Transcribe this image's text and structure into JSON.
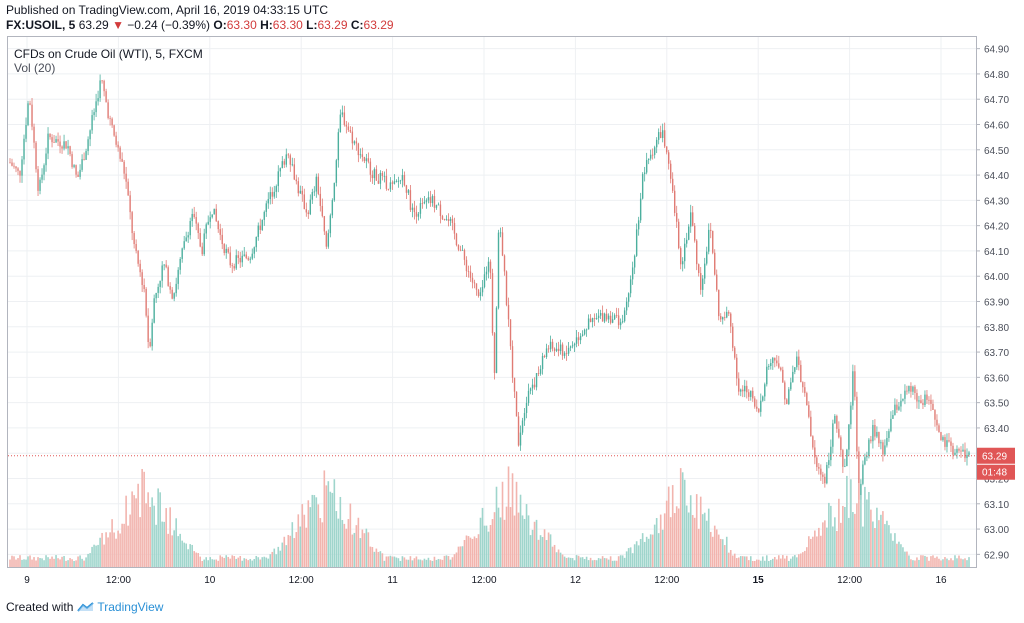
{
  "header": {
    "published": "Published on TradingView.com, April 16, 2019 04:33:15 UTC",
    "symbol": "FX:USOIL, 5",
    "last": "63.29",
    "change_arrow": "▼",
    "change": "−0.24 (−0.39%)",
    "o_label": "O:",
    "o_value": "63.30",
    "h_label": "H:",
    "h_value": "63.30",
    "l_label": "L:",
    "l_value": "63.29",
    "c_label": "C:",
    "c_value": "63.29"
  },
  "legend": {
    "instrument": "CFDs on Crude Oil (WTI), 5, FXCM",
    "volume": "Vol (20)"
  },
  "footer": {
    "created_with": "Created with",
    "brand": "TradingView"
  },
  "colors": {
    "up": "#4caf9e",
    "down": "#e07b74",
    "vol_up": "#9fd5cc",
    "vol_down": "#f2b4ae",
    "price_line": "#e05656",
    "grid": "#eef0f3",
    "axis_text": "#4a4e59"
  },
  "chart_data": {
    "type": "candlestick",
    "title": "CFDs on Crude Oil (WTI), 5, FXCM",
    "ylim": [
      62.85,
      64.95
    ],
    "y_ticks": [
      "64.90",
      "64.80",
      "64.70",
      "64.60",
      "64.50",
      "64.40",
      "64.30",
      "64.20",
      "64.10",
      "64.00",
      "63.90",
      "63.80",
      "63.70",
      "63.60",
      "63.50",
      "63.40",
      "63.30",
      "63.20",
      "63.10",
      "63.00",
      "62.90"
    ],
    "x_ticks": [
      "9",
      "12:00",
      "10",
      "12:00",
      "11",
      "12:00",
      "12",
      "12:00",
      "15",
      "12:00",
      "16"
    ],
    "current_price": "63.29",
    "countdown": "01:48",
    "price_path": [
      [
        0,
        64.45
      ],
      [
        0.01,
        64.4
      ],
      [
        0.02,
        64.72
      ],
      [
        0.03,
        64.33
      ],
      [
        0.04,
        64.55
      ],
      [
        0.06,
        64.52
      ],
      [
        0.07,
        64.38
      ],
      [
        0.08,
        64.52
      ],
      [
        0.095,
        64.78
      ],
      [
        0.105,
        64.6
      ],
      [
        0.12,
        64.4
      ],
      [
        0.13,
        64.1
      ],
      [
        0.14,
        63.95
      ],
      [
        0.145,
        63.7
      ],
      [
        0.15,
        63.9
      ],
      [
        0.16,
        64.05
      ],
      [
        0.17,
        63.92
      ],
      [
        0.18,
        64.1
      ],
      [
        0.19,
        64.25
      ],
      [
        0.2,
        64.1
      ],
      [
        0.21,
        64.28
      ],
      [
        0.22,
        64.15
      ],
      [
        0.23,
        64.05
      ],
      [
        0.25,
        64.08
      ],
      [
        0.27,
        64.3
      ],
      [
        0.29,
        64.5
      ],
      [
        0.3,
        64.35
      ],
      [
        0.31,
        64.25
      ],
      [
        0.32,
        64.38
      ],
      [
        0.33,
        64.1
      ],
      [
        0.34,
        64.45
      ],
      [
        0.345,
        64.65
      ],
      [
        0.36,
        64.52
      ],
      [
        0.38,
        64.4
      ],
      [
        0.4,
        64.35
      ],
      [
        0.41,
        64.4
      ],
      [
        0.42,
        64.25
      ],
      [
        0.44,
        64.3
      ],
      [
        0.46,
        64.2
      ],
      [
        0.47,
        64.1
      ],
      [
        0.48,
        64.0
      ],
      [
        0.49,
        63.9
      ],
      [
        0.5,
        64.1
      ],
      [
        0.505,
        63.6
      ],
      [
        0.51,
        64.25
      ],
      [
        0.52,
        63.8
      ],
      [
        0.53,
        63.35
      ],
      [
        0.54,
        63.55
      ],
      [
        0.55,
        63.6
      ],
      [
        0.56,
        63.72
      ],
      [
        0.58,
        63.7
      ],
      [
        0.6,
        63.8
      ],
      [
        0.62,
        63.85
      ],
      [
        0.64,
        63.82
      ],
      [
        0.65,
        64.05
      ],
      [
        0.66,
        64.4
      ],
      [
        0.67,
        64.5
      ],
      [
        0.68,
        64.58
      ],
      [
        0.69,
        64.35
      ],
      [
        0.7,
        64.05
      ],
      [
        0.71,
        64.25
      ],
      [
        0.72,
        63.95
      ],
      [
        0.73,
        64.2
      ],
      [
        0.74,
        63.82
      ],
      [
        0.75,
        63.85
      ],
      [
        0.76,
        63.55
      ],
      [
        0.77,
        63.55
      ],
      [
        0.78,
        63.45
      ],
      [
        0.79,
        63.65
      ],
      [
        0.8,
        63.68
      ],
      [
        0.81,
        63.5
      ],
      [
        0.82,
        63.68
      ],
      [
        0.83,
        63.5
      ],
      [
        0.84,
        63.25
      ],
      [
        0.85,
        63.2
      ],
      [
        0.86,
        63.45
      ],
      [
        0.87,
        63.2
      ],
      [
        0.88,
        63.65
      ],
      [
        0.885,
        63.1
      ],
      [
        0.89,
        63.25
      ],
      [
        0.9,
        63.4
      ],
      [
        0.91,
        63.3
      ],
      [
        0.92,
        63.45
      ],
      [
        0.93,
        63.52
      ],
      [
        0.94,
        63.55
      ],
      [
        0.95,
        63.5
      ],
      [
        0.96,
        63.52
      ],
      [
        0.97,
        63.35
      ],
      [
        0.98,
        63.32
      ],
      [
        1.0,
        63.29
      ]
    ]
  }
}
